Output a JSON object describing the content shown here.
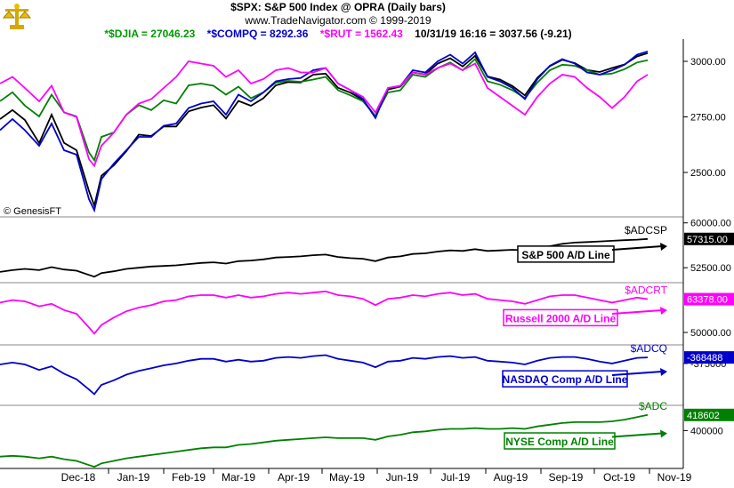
{
  "header": {
    "title": "$SPX:  S&P 500 Index @ OPRA  (Daily bars)",
    "copyright": "www.TradeNavigator.com © 1999-2019",
    "readouts": [
      {
        "text": "*$DJIA = 27046.23",
        "color": "#009900"
      },
      {
        "text": "*$COMPQ = 8292.36",
        "color": "#0000cc"
      },
      {
        "text": "*$RUT = 1562.43",
        "color": "#ff00ff"
      },
      {
        "text": "10/31/19 16:16 = 3037.56 (-9.21)",
        "color": "#000000"
      }
    ],
    "watermark": "© GenesisFT"
  },
  "x_axis": {
    "labels": [
      "Dec-18",
      "Jan-19",
      "Feb-19",
      "Mar-19",
      "Apr-19",
      "May-19",
      "Jun-19",
      "Jul-19",
      "Aug-19",
      "Sep-19",
      "Oct-19",
      "Nov-19"
    ]
  },
  "chart_data": [
    {
      "type": "line",
      "title": "$SPX:  S&P 500 Index @ OPRA  (Daily bars)",
      "y_ticks": [
        "3000.00",
        "2750.00",
        "2500.00"
      ],
      "ylim": [
        2300,
        3100
      ],
      "x": [
        "2018-11-01",
        "2018-11-08",
        "2018-11-15",
        "2018-11-23",
        "2018-11-30",
        "2018-12-07",
        "2018-12-14",
        "2018-12-21",
        "2018-12-24",
        "2018-12-28",
        "2019-01-04",
        "2019-01-11",
        "2019-01-18",
        "2019-01-25",
        "2019-02-01",
        "2019-02-08",
        "2019-02-15",
        "2019-02-22",
        "2019-03-01",
        "2019-03-08",
        "2019-03-15",
        "2019-03-22",
        "2019-03-29",
        "2019-04-05",
        "2019-04-12",
        "2019-04-19",
        "2019-04-26",
        "2019-05-03",
        "2019-05-10",
        "2019-05-17",
        "2019-05-24",
        "2019-05-31",
        "2019-06-07",
        "2019-06-14",
        "2019-06-21",
        "2019-06-28",
        "2019-07-05",
        "2019-07-12",
        "2019-07-19",
        "2019-07-26",
        "2019-08-02",
        "2019-08-09",
        "2019-08-16",
        "2019-08-23",
        "2019-08-30",
        "2019-09-06",
        "2019-09-13",
        "2019-09-20",
        "2019-09-27",
        "2019-10-04",
        "2019-10-11",
        "2019-10-18",
        "2019-10-25",
        "2019-10-31"
      ],
      "series": [
        {
          "name": "$SPX",
          "color": "#000000",
          "values": [
            2740,
            2781,
            2736,
            2632,
            2760,
            2633,
            2600,
            2417,
            2351,
            2485,
            2532,
            2596,
            2670,
            2664,
            2707,
            2707,
            2775,
            2792,
            2803,
            2743,
            2822,
            2800,
            2834,
            2892,
            2907,
            2905,
            2940,
            2945,
            2881,
            2859,
            2826,
            2752,
            2873,
            2886,
            2950,
            2941,
            2990,
            3014,
            2977,
            3025,
            2932,
            2918,
            2889,
            2847,
            2926,
            2978,
            3007,
            2992,
            2961,
            2952,
            2970,
            2986,
            3022,
            3037
          ]
        },
        {
          "name": "$DJIA",
          "color": "#008000",
          "values": [
            2821,
            2861,
            2801,
            2752,
            2850,
            2771,
            2752,
            2590,
            2555,
            2660,
            2680,
            2760,
            2803,
            2781,
            2825,
            2810,
            2892,
            2900,
            2890,
            2850,
            2886,
            2834,
            2860,
            2904,
            2912,
            2908,
            2918,
            2930,
            2870,
            2847,
            2820,
            2755,
            2860,
            2870,
            2940,
            2930,
            2970,
            2995,
            2960,
            3010,
            2910,
            2895,
            2870,
            2835,
            2905,
            2960,
            2985,
            2980,
            2960,
            2940,
            2945,
            2965,
            2995,
            3005
          ]
        },
        {
          "name": "$COMPQ",
          "color": "#0000cc",
          "values": [
            2690,
            2740,
            2690,
            2620,
            2720,
            2600,
            2580,
            2380,
            2330,
            2470,
            2540,
            2600,
            2660,
            2660,
            2710,
            2720,
            2790,
            2810,
            2820,
            2760,
            2850,
            2820,
            2860,
            2910,
            2920,
            2925,
            2960,
            2970,
            2900,
            2870,
            2830,
            2745,
            2880,
            2890,
            2960,
            2950,
            3000,
            3030,
            2990,
            3040,
            2930,
            2910,
            2880,
            2830,
            2920,
            2980,
            3010,
            2990,
            2950,
            2940,
            2960,
            2985,
            3030,
            3045
          ]
        },
        {
          "name": "$RUT",
          "color": "#ff00ff",
          "values": [
            2900,
            2930,
            2880,
            2820,
            2890,
            2770,
            2750,
            2560,
            2530,
            2620,
            2680,
            2760,
            2810,
            2830,
            2880,
            2930,
            3000,
            2990,
            2980,
            2930,
            2960,
            2900,
            2920,
            2960,
            2970,
            2950,
            2950,
            2970,
            2900,
            2870,
            2840,
            2770,
            2880,
            2890,
            2950,
            2940,
            2970,
            2990,
            2960,
            2990,
            2880,
            2840,
            2800,
            2760,
            2840,
            2900,
            2940,
            2930,
            2880,
            2840,
            2790,
            2840,
            2910,
            2940
          ]
        }
      ]
    },
    {
      "type": "line",
      "name": "$ADCSP",
      "label": "S&P 500 A/D Line",
      "value_label": "57315.00",
      "color": "#000000",
      "y_ticks": [
        "60000.00",
        "52500.00"
      ],
      "ylim": [
        50000,
        61000
      ],
      "values": [
        51800,
        52100,
        52300,
        52100,
        52600,
        52200,
        52000,
        51300,
        51000,
        51600,
        51900,
        52300,
        52500,
        52700,
        52800,
        52900,
        53100,
        53300,
        53400,
        53200,
        53600,
        53700,
        53900,
        54200,
        54300,
        54400,
        54600,
        54700,
        54300,
        54100,
        54000,
        53600,
        54200,
        54400,
        54800,
        54900,
        55200,
        55400,
        55300,
        55600,
        55300,
        55400,
        55500,
        55400,
        55800,
        56100,
        56500,
        56700,
        56800,
        56900,
        57000,
        57100,
        57200,
        57315
      ]
    },
    {
      "type": "line",
      "name": "$ADCRT",
      "label": "Russell 2000 A/D Line",
      "value_label": "63378.00",
      "color": "#ff00ff",
      "y_ticks": [
        "50000.00"
      ],
      "ylim": [
        45000,
        70000
      ],
      "values": [
        62000,
        63000,
        62500,
        60500,
        61500,
        59000,
        57500,
        52000,
        49500,
        53000,
        56000,
        58500,
        60000,
        61000,
        62500,
        63000,
        64500,
        65000,
        65000,
        64000,
        65000,
        64000,
        64500,
        65500,
        66000,
        65500,
        66000,
        66500,
        65000,
        64500,
        63500,
        61000,
        63500,
        64000,
        65000,
        64500,
        65500,
        66000,
        65000,
        65500,
        63500,
        63000,
        62500,
        61500,
        63000,
        64500,
        65000,
        65000,
        64000,
        63000,
        62000,
        63000,
        64000,
        63378
      ]
    },
    {
      "type": "line",
      "name": "$ADCQ",
      "label": "NASDAQ Comp A/D Line",
      "value_label": "-368488",
      "color": "#0000cc",
      "y_ticks": [
        "-375000"
      ],
      "ylim": [
        -420000,
        -355000
      ],
      "values": [
        -376000,
        -374000,
        -376000,
        -382000,
        -378000,
        -386000,
        -392000,
        -403000,
        -408000,
        -398000,
        -393000,
        -387000,
        -383000,
        -380000,
        -377000,
        -375000,
        -372000,
        -370000,
        -370000,
        -373000,
        -371000,
        -373000,
        -372000,
        -369000,
        -368000,
        -369000,
        -367000,
        -366000,
        -370000,
        -372000,
        -374000,
        -379000,
        -373000,
        -372000,
        -369000,
        -370000,
        -368000,
        -367000,
        -369000,
        -368000,
        -372000,
        -373000,
        -374000,
        -376000,
        -372000,
        -369000,
        -368000,
        -368000,
        -370000,
        -373000,
        -375000,
        -372000,
        -369000,
        -368488
      ]
    },
    {
      "type": "line",
      "name": "$ADC",
      "label": "NYSE Comp A/D Line",
      "value_label": "418602",
      "color": "#008000",
      "y_ticks": [
        "400000"
      ],
      "ylim": [
        355000,
        430000
      ],
      "values": [
        369000,
        370000,
        369000,
        367000,
        369000,
        366000,
        364000,
        359000,
        357000,
        361000,
        364000,
        367000,
        369000,
        371000,
        373000,
        375000,
        377000,
        379000,
        380000,
        380000,
        383000,
        384000,
        386000,
        388000,
        389000,
        390000,
        391000,
        392000,
        391000,
        391000,
        391000,
        389000,
        393000,
        395000,
        398000,
        399000,
        401000,
        402000,
        402000,
        403000,
        402000,
        402000,
        403000,
        402000,
        405000,
        407000,
        409000,
        410000,
        410000,
        410000,
        411000,
        413000,
        416000,
        418602
      ]
    }
  ]
}
